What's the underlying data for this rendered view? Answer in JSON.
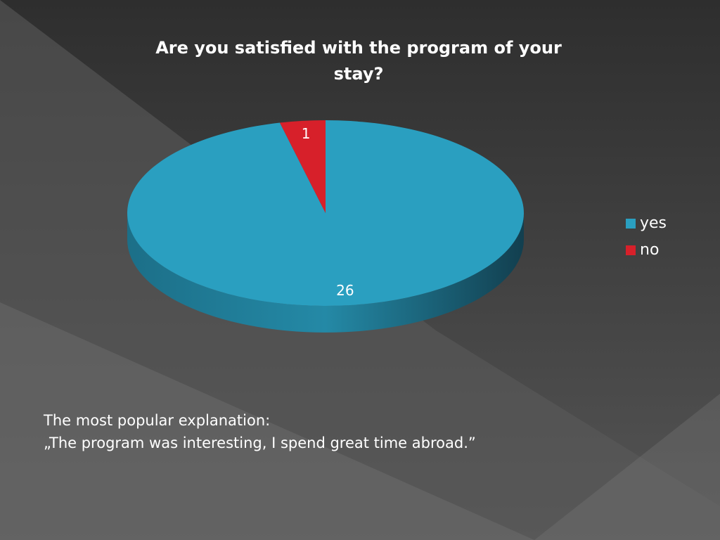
{
  "chart_data": {
    "type": "pie",
    "title": "Are you satisfied with the program of your stay?",
    "categories": [
      "yes",
      "no"
    ],
    "values": [
      26,
      1
    ],
    "colors": [
      "#2a9fc0",
      "#d7202a"
    ],
    "legend": "right"
  },
  "caption": [
    "The most popular explanation:",
    "„The program was interesting, I spend great time abroad.”"
  ]
}
